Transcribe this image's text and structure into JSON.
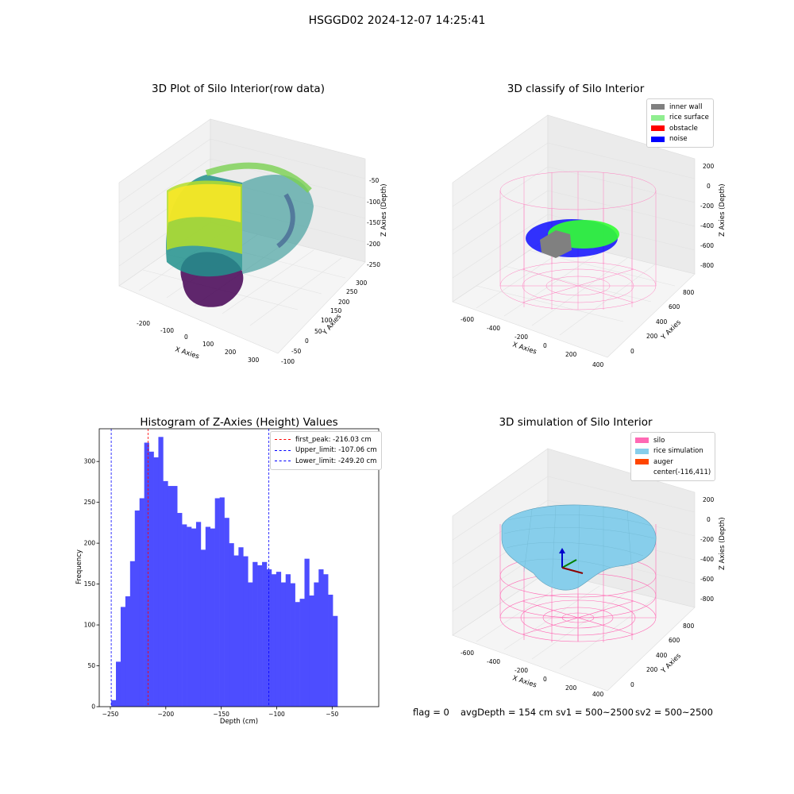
{
  "suptitle": "HSGGD02 2024-12-07 14:25:41",
  "raw_plot": {
    "title": "3D Plot of Silo Interior(row data)",
    "x_label": "X Axies",
    "y_label": "Y Axies",
    "z_label": "Z Axies (Depth)",
    "x_ticks": [
      "-200",
      "-100",
      "0",
      "100",
      "200",
      "300"
    ],
    "y_ticks": [
      "-100",
      "-50",
      "0",
      "50",
      "100",
      "150",
      "200",
      "250",
      "300"
    ],
    "z_ticks": [
      "-50",
      "-100",
      "-150",
      "-200",
      "-250"
    ]
  },
  "classify_plot": {
    "title": "3D classify of Silo Interior",
    "x_label": "X Axies",
    "y_label": "Y Axies",
    "z_label": "Z Axies (Depth)",
    "x_ticks": [
      "-600",
      "-400",
      "-200",
      "0",
      "200",
      "400"
    ],
    "y_ticks": [
      "0",
      "200",
      "400",
      "600",
      "800"
    ],
    "z_ticks": [
      "200",
      "0",
      "-200",
      "-400",
      "-600",
      "-800"
    ],
    "legend": [
      {
        "label": "inner wall",
        "color": "#808080"
      },
      {
        "label": "rice surface",
        "color": "#90ee90"
      },
      {
        "label": "obstacle",
        "color": "#ff0000"
      },
      {
        "label": "noise",
        "color": "#0000ff"
      }
    ]
  },
  "sim_plot": {
    "title": "3D simulation of Silo Interior",
    "x_label": "X Axies",
    "y_label": "Y Axies",
    "z_label": "Z Axies (Depth)",
    "x_ticks": [
      "-600",
      "-400",
      "-200",
      "0",
      "200",
      "400"
    ],
    "y_ticks": [
      "0",
      "200",
      "400",
      "600",
      "800"
    ],
    "z_ticks": [
      "200",
      "0",
      "-200",
      "-400",
      "-600",
      "-800"
    ],
    "legend": [
      {
        "label": "silo",
        "color": "#ff69b4"
      },
      {
        "label": "rice simulation",
        "color": "#87ceeb"
      },
      {
        "label": "auger",
        "color": "#ff4500"
      },
      {
        "label": "center(-116,411)",
        "color": ""
      }
    ]
  },
  "footer": {
    "flag": "flag = 0",
    "avg": "avgDepth = 154 cm",
    "sv1": "sv1 = 500~2500",
    "sv2": "sv2 = 500~2500"
  },
  "chart_data": [
    {
      "type": "bar",
      "title": "Histogram of Z-Axies (Height) Values",
      "xlabel": "Depth (cm)",
      "ylabel": "Frequency",
      "xlim": [
        -260,
        -8
      ],
      "ylim": [
        0,
        340
      ],
      "bar_color": "#4d4dff",
      "bin_start": -249.2,
      "bin_width": 4.25,
      "counts": [
        8,
        55,
        122,
        135,
        178,
        240,
        255,
        323,
        312,
        305,
        330,
        276,
        270,
        270,
        237,
        223,
        220,
        218,
        226,
        192,
        220,
        218,
        255,
        256,
        231,
        200,
        185,
        195,
        184,
        152,
        177,
        173,
        177,
        168,
        162,
        165,
        152,
        162,
        151,
        128,
        132,
        181,
        136,
        152,
        168,
        162,
        137,
        111
      ],
      "x_ticks": [
        -250,
        -200,
        -150,
        -100,
        -50
      ],
      "x_tick_labels": [
        "−250",
        "−200",
        "−150",
        "−100",
        "−50"
      ],
      "y_ticks": [
        0,
        50,
        100,
        150,
        200,
        250,
        300
      ],
      "y_tick_labels": [
        "0",
        "50",
        "100",
        "150",
        "200",
        "250",
        "300"
      ],
      "lines": [
        {
          "label": "first_peak: -216.03 cm",
          "x": -216.03,
          "color": "#ff0000"
        },
        {
          "label": "Upper_limit: -107.06 cm",
          "x": -107.06,
          "color": "#0000ff"
        },
        {
          "label": "Lower_limit: -249.20 cm",
          "x": -249.2,
          "color": "#0000ff"
        }
      ],
      "legend_position": "top-right",
      "grid": false
    }
  ]
}
